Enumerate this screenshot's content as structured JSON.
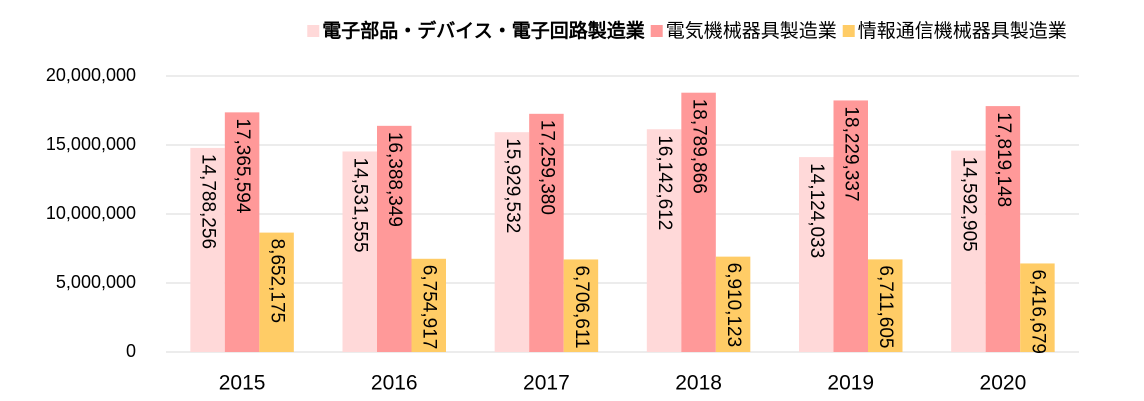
{
  "chart_data": {
    "type": "bar",
    "categories": [
      "2015",
      "2016",
      "2017",
      "2018",
      "2019",
      "2020"
    ],
    "series": [
      {
        "name": "電子部品・デバイス・電子回路製造業",
        "color": "#ffd9d9",
        "values": [
          14788256,
          14531555,
          15929532,
          16142612,
          14124033,
          14592905
        ],
        "value_labels": [
          "14,788,256",
          "14,531,555",
          "15,929,532",
          "16,142,612",
          "14,124,033",
          "14,592,905"
        ]
      },
      {
        "name": "電気機械器具製造業",
        "color": "#ff9999",
        "values": [
          17365594,
          16388349,
          17259380,
          18789866,
          18229337,
          17819148
        ],
        "value_labels": [
          "17,365,594",
          "16,388,349",
          "17,259,380",
          "18,789,866",
          "18,229,337",
          "17,819,148"
        ]
      },
      {
        "name": "情報通信機械器具製造業",
        "color": "#ffcc66",
        "values": [
          8652175,
          6754917,
          6706611,
          6910123,
          6711605,
          6416679
        ],
        "value_labels": [
          "8,652,175",
          "6,754,917",
          "6,706,611",
          "6,910,123",
          "6,711,605",
          "6,416,679"
        ]
      }
    ],
    "ylim": [
      0,
      20000000
    ],
    "yticks": [
      0,
      {
        "value": 5000000,
        "label": "5,000,000"
      },
      {
        "value": 10000000,
        "label": "10,000,000"
      },
      {
        "value": 15000000,
        "label": "15,000,000"
      },
      {
        "value": 20000000,
        "label": "20,000,000"
      }
    ],
    "grid": true,
    "legend": "top"
  }
}
